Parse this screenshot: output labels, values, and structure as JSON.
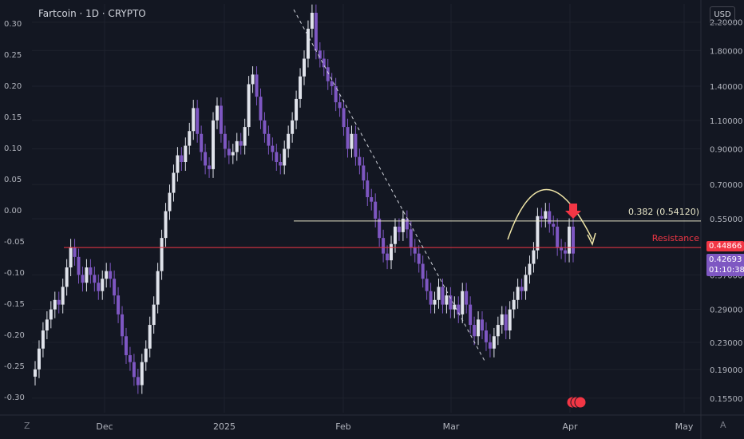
{
  "header": {
    "title": "Fartcoin · 1D · CRYPTO",
    "currency": "USD"
  },
  "footer": {
    "left_symbol": "Z",
    "right_symbol": "A"
  },
  "chart_data": {
    "type": "candlestick",
    "title": "Fartcoin · 1D · CRYPTO",
    "left_axis": {
      "ticks": [
        "0.30",
        "0.25",
        "0.20",
        "0.15",
        "0.10",
        "0.05",
        "0.00",
        "-0.05",
        "-0.10",
        "-0.15",
        "-0.20",
        "-0.25",
        "-0.30"
      ],
      "values": [
        0.3,
        0.25,
        0.2,
        0.15,
        0.1,
        0.05,
        0.0,
        -0.05,
        -0.1,
        -0.15,
        -0.2,
        -0.25,
        -0.3
      ]
    },
    "right_axis": {
      "scale": "log",
      "ticks": [
        "2.20000",
        "1.80000",
        "1.40000",
        "1.10000",
        "0.90000",
        "0.70000",
        "0.55000",
        "0.37000",
        "0.29000",
        "0.23000",
        "0.19000",
        "0.15500"
      ],
      "values": [
        2.2,
        1.8,
        1.4,
        1.1,
        0.9,
        0.7,
        0.55,
        0.37,
        0.29,
        0.23,
        0.19,
        0.155
      ]
    },
    "x_axis": {
      "ticks": [
        "Dec",
        "2025",
        "Feb",
        "Mar",
        "Apr",
        "May"
      ]
    },
    "levels": [
      {
        "label": "0.382 (0.54120)",
        "value": 0.5412,
        "color": "#e8e6c8"
      },
      {
        "label": "Resistance",
        "value": 0.44866,
        "color": "#f23645"
      }
    ],
    "last_price": {
      "price": "0.42693",
      "countdown": "01:10:38",
      "color": "#7e57c2"
    },
    "resistance_price": {
      "price": "0.44866",
      "color": "#f23645"
    },
    "series_close": [
      0.19,
      0.22,
      0.25,
      0.27,
      0.29,
      0.31,
      0.3,
      0.34,
      0.39,
      0.45,
      0.42,
      0.37,
      0.35,
      0.39,
      0.37,
      0.35,
      0.33,
      0.36,
      0.38,
      0.36,
      0.32,
      0.28,
      0.24,
      0.21,
      0.2,
      0.18,
      0.17,
      0.2,
      0.22,
      0.26,
      0.3,
      0.38,
      0.48,
      0.58,
      0.66,
      0.76,
      0.86,
      0.82,
      0.92,
      1.02,
      1.2,
      1.0,
      0.88,
      0.8,
      0.78,
      1.1,
      1.22,
      1.0,
      0.9,
      0.86,
      0.88,
      0.95,
      0.92,
      1.05,
      1.42,
      1.52,
      1.3,
      1.1,
      1.0,
      0.92,
      0.88,
      0.82,
      0.8,
      0.9,
      1.0,
      1.1,
      1.28,
      1.5,
      1.7,
      2.1,
      2.35,
      1.8,
      1.7,
      1.6,
      1.45,
      1.4,
      1.25,
      1.2,
      1.05,
      0.9,
      1.0,
      0.85,
      0.8,
      0.72,
      0.64,
      0.62,
      0.55,
      0.48,
      0.43,
      0.41,
      0.46,
      0.52,
      0.5,
      0.55,
      0.51,
      0.45,
      0.43,
      0.4,
      0.36,
      0.33,
      0.3,
      0.31,
      0.34,
      0.3,
      0.32,
      0.29,
      0.3,
      0.28,
      0.33,
      0.3,
      0.26,
      0.24,
      0.27,
      0.25,
      0.23,
      0.22,
      0.24,
      0.26,
      0.28,
      0.25,
      0.29,
      0.31,
      0.34,
      0.33,
      0.37,
      0.4,
      0.44,
      0.56,
      0.55,
      0.58,
      0.53,
      0.52,
      0.45,
      0.44,
      0.43,
      0.52,
      0.43
    ],
    "dates_start": "2024-11-19"
  }
}
